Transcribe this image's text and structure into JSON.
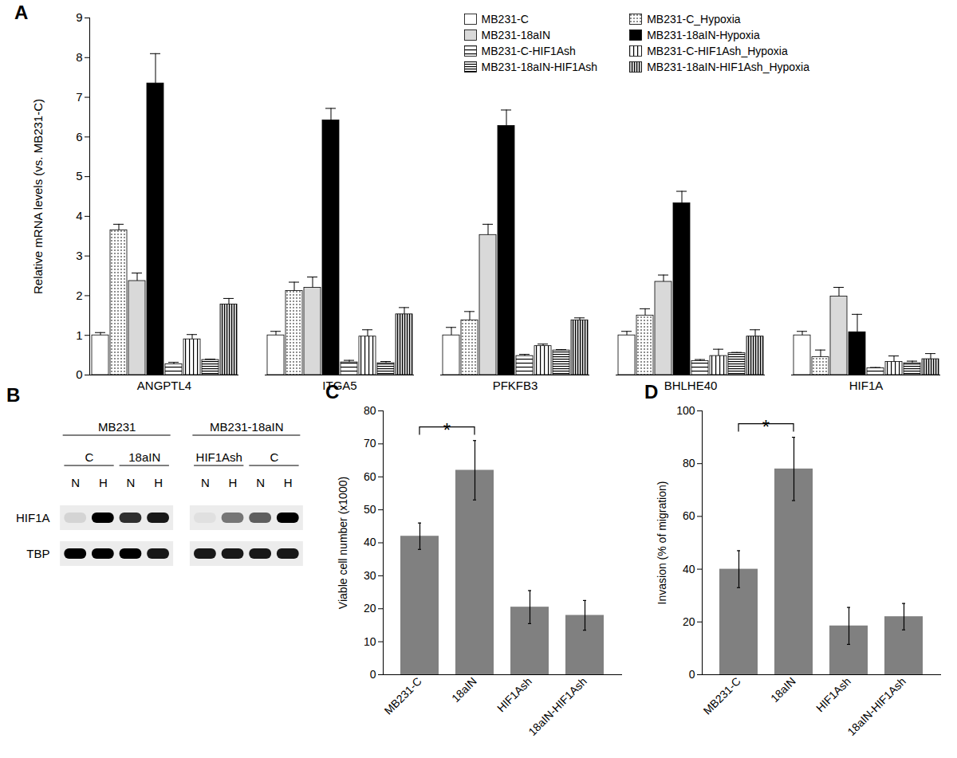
{
  "chart_data": [
    {
      "type": "bar",
      "title": "A",
      "categories": [
        "ANGPTL4",
        "ITGA5",
        "PFKFB3",
        "BHLHE40",
        "HIF1A"
      ],
      "ylabel": "Relative mRNA levels (vs. MB231-C)",
      "ylim": [
        0,
        9
      ],
      "yticks": [
        0,
        1,
        2,
        3,
        4,
        5,
        6,
        7,
        8,
        9
      ],
      "grid": false,
      "legend": "top-right",
      "series": [
        {
          "name": "MB231-C",
          "color": "#ffffff",
          "values": [
            1.0,
            1.0,
            1.0,
            1.0,
            1.0
          ],
          "errors": [
            0.07,
            0.1,
            0.2,
            0.1,
            0.1
          ]
        },
        {
          "name": "MB231-C_Hypoxia",
          "color": "#ffffff",
          "values": [
            3.65,
            2.12,
            1.38,
            1.5,
            0.45
          ],
          "errors": [
            0.15,
            0.22,
            0.22,
            0.17,
            0.18
          ]
        },
        {
          "name": "MB231-18aIN",
          "color": "#d9d9d9",
          "values": [
            2.37,
            2.2,
            3.53,
            2.35,
            1.98
          ],
          "errors": [
            0.2,
            0.27,
            0.27,
            0.17,
            0.23
          ]
        },
        {
          "name": "MB231-18aIN-Hypoxia",
          "color": "#000000",
          "values": [
            7.35,
            6.42,
            6.28,
            4.33,
            1.08
          ],
          "errors": [
            0.75,
            0.3,
            0.4,
            0.3,
            0.45
          ]
        },
        {
          "name": "MB231-C-HIF1Ash",
          "color": "#ffffff",
          "values": [
            0.27,
            0.32,
            0.48,
            0.35,
            0.17
          ],
          "errors": [
            0.05,
            0.05,
            0.04,
            0.04,
            0.02
          ]
        },
        {
          "name": "MB231-C-HIF1Ash_Hypoxia",
          "color": "#ffffff",
          "values": [
            0.9,
            0.97,
            0.73,
            0.48,
            0.33
          ],
          "errors": [
            0.12,
            0.17,
            0.05,
            0.17,
            0.15
          ]
        },
        {
          "name": "MB231-18aIN-HIF1Ash",
          "color": "#ffffff",
          "values": [
            0.38,
            0.3,
            0.62,
            0.55,
            0.3
          ],
          "errors": [
            0.02,
            0.04,
            0.02,
            0.02,
            0.05
          ]
        },
        {
          "name": "MB231-18aIN-HIF1Ash_Hypoxia",
          "color": "#d9d9d9",
          "values": [
            1.78,
            1.53,
            1.38,
            0.97,
            0.4
          ],
          "errors": [
            0.15,
            0.17,
            0.06,
            0.17,
            0.14
          ]
        }
      ]
    },
    {
      "type": "blot",
      "title": "B",
      "lane_groups": [
        "MB231",
        "MB231",
        "MB231",
        "MB231",
        "MB231-18aIN",
        "MB231-18aIN",
        "MB231-18aIN",
        "MB231-18aIN"
      ],
      "lane_conditions": [
        "C",
        "C",
        "18aIN",
        "18aIN",
        "HIF1Ash",
        "HIF1Ash",
        "C",
        "C"
      ],
      "lanes": [
        "N",
        "H",
        "N",
        "H",
        "N",
        "H",
        "N",
        "H"
      ],
      "rows": [
        "HIF1A",
        "TBP"
      ],
      "intensity": [
        [
          0.1,
          1.0,
          0.8,
          0.9,
          0.05,
          0.5,
          0.6,
          1.0
        ],
        [
          1.0,
          1.0,
          1.0,
          0.9,
          0.9,
          0.9,
          0.9,
          0.9
        ]
      ],
      "intensity_range": [
        0,
        1
      ]
    },
    {
      "type": "bar",
      "title": "C",
      "categories": [
        "MB231-C",
        "18aIN",
        "HIF1Ash",
        "18aIN-HIF1Ash"
      ],
      "values": [
        42,
        62,
        20.5,
        18
      ],
      "errors": [
        4,
        9,
        5,
        4.5
      ],
      "color": "#808080",
      "ylabel": "Viable cell number (x1000)",
      "ylim": [
        0,
        80
      ],
      "yticks": [
        0,
        10,
        20,
        30,
        40,
        50,
        60,
        70,
        80
      ],
      "annotations": [
        {
          "text": "*",
          "from": "MB231-C",
          "to": "18aIN"
        }
      ]
    },
    {
      "type": "bar",
      "title": "D",
      "categories": [
        "MB231-C",
        "18aIN",
        "HIF1Ash",
        "18aIN-HIF1Ash"
      ],
      "values": [
        40,
        78,
        18.5,
        22
      ],
      "errors": [
        7,
        12,
        7,
        5
      ],
      "color": "#808080",
      "ylabel": "Invasion (% of migration)",
      "ylim": [
        0,
        100
      ],
      "yticks": [
        0,
        20,
        40,
        60,
        80,
        100
      ],
      "annotations": [
        {
          "text": "*",
          "from": "MB231-C",
          "to": "18aIN"
        }
      ]
    }
  ]
}
